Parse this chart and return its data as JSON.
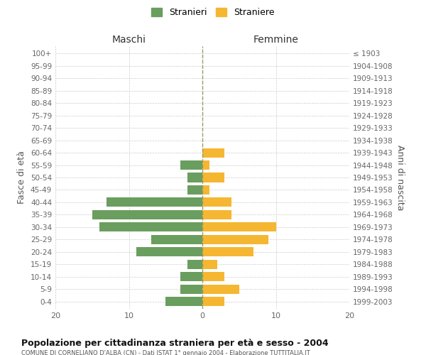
{
  "age_groups": [
    "100+",
    "95-99",
    "90-94",
    "85-89",
    "80-84",
    "75-79",
    "70-74",
    "65-69",
    "60-64",
    "55-59",
    "50-54",
    "45-49",
    "40-44",
    "35-39",
    "30-34",
    "25-29",
    "20-24",
    "15-19",
    "10-14",
    "5-9",
    "0-4"
  ],
  "birth_years": [
    "≤ 1903",
    "1904-1908",
    "1909-1913",
    "1914-1918",
    "1919-1923",
    "1924-1928",
    "1929-1933",
    "1934-1938",
    "1939-1943",
    "1944-1948",
    "1949-1953",
    "1954-1958",
    "1959-1963",
    "1964-1968",
    "1969-1973",
    "1974-1978",
    "1979-1983",
    "1984-1988",
    "1989-1993",
    "1994-1998",
    "1999-2003"
  ],
  "maschi": [
    0,
    0,
    0,
    0,
    0,
    0,
    0,
    0,
    0,
    3,
    2,
    2,
    13,
    15,
    14,
    7,
    9,
    2,
    3,
    3,
    5
  ],
  "femmine": [
    0,
    0,
    0,
    0,
    0,
    0,
    0,
    0,
    3,
    1,
    3,
    1,
    4,
    4,
    10,
    9,
    7,
    2,
    3,
    5,
    3
  ],
  "maschi_color": "#6a9e5e",
  "femmine_color": "#f5b731",
  "bg_color": "#ffffff",
  "grid_color": "#cccccc",
  "bar_height": 0.75,
  "xlim": 20,
  "title": "Popolazione per cittadinanza straniera per età e sesso - 2004",
  "subtitle": "COMUNE DI CORNELIANO D'ALBA (CN) - Dati ISTAT 1° gennaio 2004 - Elaborazione TUTTITALIA.IT",
  "legend_stranieri": "Stranieri",
  "legend_straniere": "Straniere",
  "maschi_label": "Maschi",
  "femmine_label": "Femmine",
  "fasce_label": "Fasce di età",
  "anni_label": "Anni di nascita"
}
